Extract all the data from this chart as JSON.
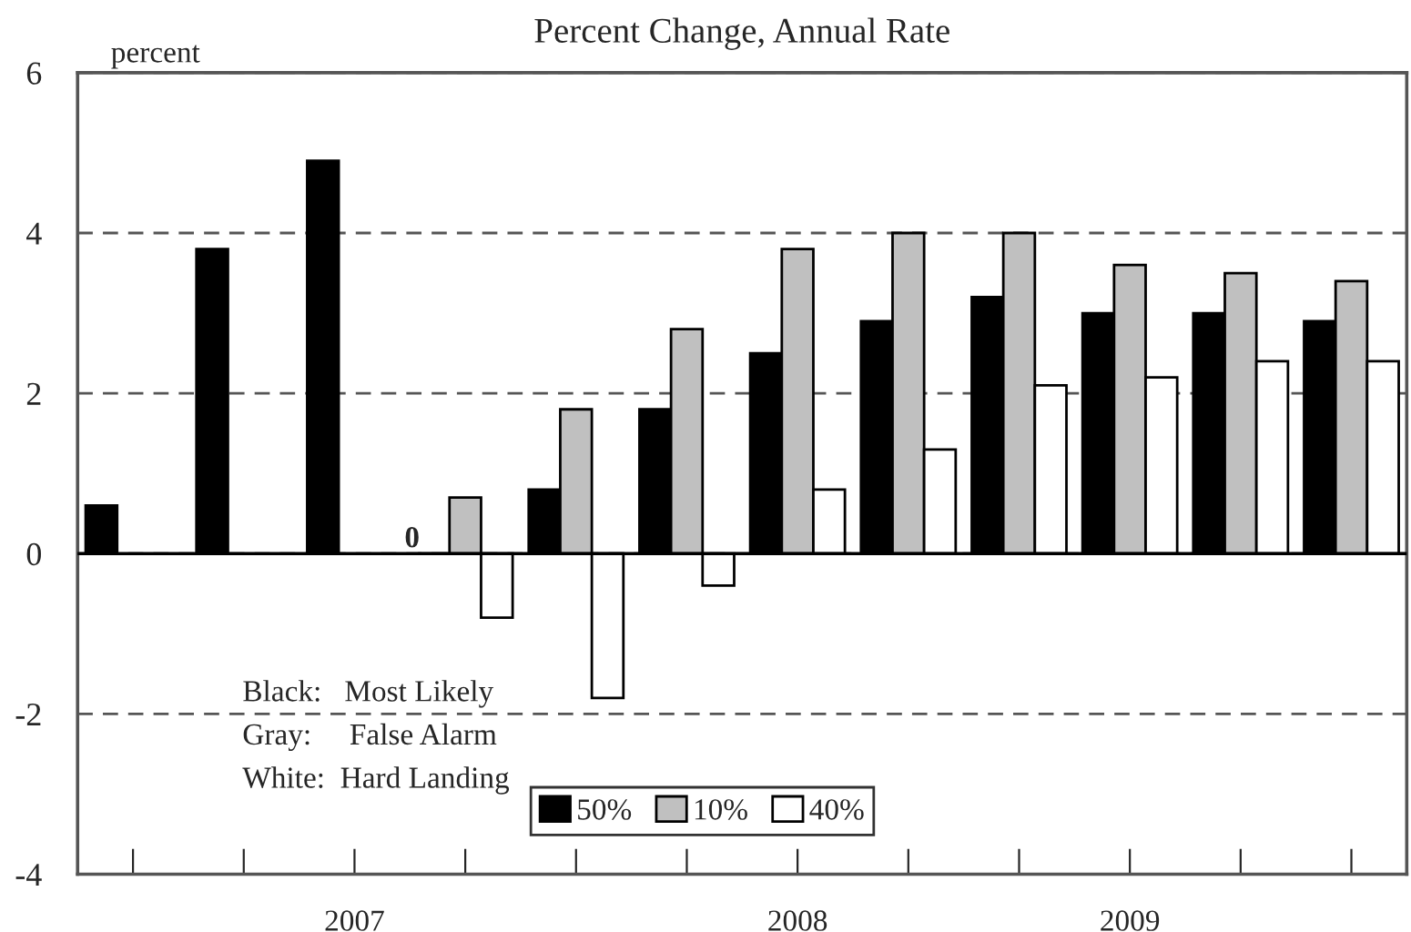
{
  "chart_data": {
    "type": "bar",
    "title": "Percent Change, Annual Rate",
    "ylabel": "percent",
    "categories": [
      null,
      null,
      "2007",
      null,
      null,
      null,
      "2008",
      null,
      null,
      "2009",
      null,
      null
    ],
    "series": [
      {
        "name": "50%",
        "color": "#000000",
        "values": [
          0.6,
          3.8,
          4.9,
          0,
          0.8,
          1.8,
          2.5,
          2.9,
          3.2,
          3.0,
          3.0,
          2.9
        ],
        "value_labels": [
          null,
          null,
          null,
          "0",
          null,
          null,
          null,
          null,
          null,
          null,
          null,
          null
        ]
      },
      {
        "name": "10%",
        "color": "#c0c0c0",
        "values": [
          null,
          null,
          null,
          0.7,
          1.8,
          2.8,
          3.8,
          4.0,
          4.0,
          3.6,
          3.5,
          3.4
        ]
      },
      {
        "name": "40%",
        "color": "#ffffff",
        "values": [
          null,
          null,
          null,
          -0.8,
          -1.8,
          -0.4,
          0.8,
          1.3,
          2.1,
          2.2,
          2.4,
          2.4
        ]
      }
    ],
    "ylim": [
      -4,
      6
    ],
    "yticks": [
      -4,
      -2,
      0,
      2,
      4,
      6
    ],
    "grid": "y",
    "line_style": "dashed",
    "legend": "bottom",
    "ref_lines": [
      {
        "axis": "y",
        "value": 0,
        "color": "#000000",
        "line_style": "solid"
      }
    ],
    "annotations": [
      "Black:   Most Likely",
      "Gray:     False Alarm",
      "White:  Hard Landing"
    ]
  }
}
